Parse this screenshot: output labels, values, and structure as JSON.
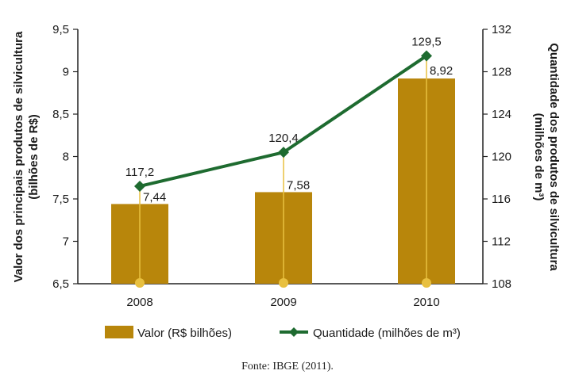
{
  "chart_data": {
    "type": "bar",
    "categories": [
      "2008",
      "2009",
      "2010"
    ],
    "series": [
      {
        "name": "Valor (R$ bilhões)",
        "type": "bar",
        "axis": "left",
        "values": [
          7.44,
          7.58,
          8.92
        ],
        "labels": [
          "7,44",
          "7,58",
          "8,92"
        ],
        "color": "#b8860b"
      },
      {
        "name": "Quantidade (milhões de m³)",
        "type": "line",
        "axis": "right",
        "values": [
          117.2,
          120.4,
          129.5
        ],
        "labels": [
          "117,2",
          "120,4",
          "129,5"
        ],
        "color": "#1e6b30"
      }
    ],
    "ylabel_left_line1": "Valor dos principais produtos de silvicultura",
    "ylabel_left_line2": "(bilhões de R$)",
    "ylabel_right_line1": "Quantidade dos produtos de silvicultura",
    "ylabel_right_line2": "(milhões de m³)",
    "ylim_left": [
      6.5,
      9.5
    ],
    "yticks_left": [
      "6,5",
      "7",
      "7,5",
      "8",
      "8,5",
      "9",
      "9,5"
    ],
    "ylim_right": [
      108,
      132
    ],
    "yticks_right": [
      "108",
      "112",
      "116",
      "120",
      "124",
      "128",
      "132"
    ],
    "grid": false,
    "legend_position": "bottom"
  },
  "source": "Fonte: IBGE (2011)."
}
